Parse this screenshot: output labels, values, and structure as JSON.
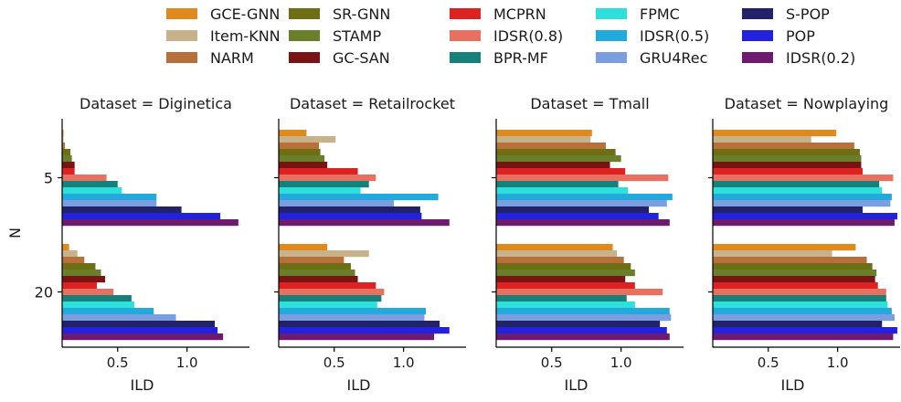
{
  "chart_data": {
    "type": "bar",
    "orientation": "horizontal",
    "grid": false,
    "legend_position": "top",
    "ylabel": "N",
    "xlabel": "ILD",
    "categories": [
      "5",
      "20"
    ],
    "xticks": [
      0.5,
      1.0
    ],
    "xtick_labels": [
      "0.5",
      "1.0"
    ],
    "xlim": [
      0.1,
      1.45
    ],
    "series": [
      {
        "name": "GCE-GNN",
        "color": "#e08a1e"
      },
      {
        "name": "Item-KNN",
        "color": "#c8b28c"
      },
      {
        "name": "NARM",
        "color": "#b8703a"
      },
      {
        "name": "SR-GNN",
        "color": "#6e6e14"
      },
      {
        "name": "STAMP",
        "color": "#6a7f2a"
      },
      {
        "name": "GC-SAN",
        "color": "#7a1414"
      },
      {
        "name": "MCPRN",
        "color": "#dd2222"
      },
      {
        "name": "IDSR(0.8)",
        "color": "#e87060"
      },
      {
        "name": "BPR-MF",
        "color": "#16807a"
      },
      {
        "name": "FPMC",
        "color": "#2ee0dc"
      },
      {
        "name": "IDSR(0.5)",
        "color": "#22aadd"
      },
      {
        "name": "GRU4Rec",
        "color": "#7a9ee0"
      },
      {
        "name": "S-POP",
        "color": "#22226a"
      },
      {
        "name": "POP",
        "color": "#2222dd"
      },
      {
        "name": "IDSR(0.2)",
        "color": "#6e1a6e"
      }
    ],
    "panels": [
      {
        "title": "Dataset = Diginetica",
        "values": {
          "5": [
            0.11,
            0.11,
            0.12,
            0.16,
            0.17,
            0.19,
            0.19,
            0.42,
            0.5,
            0.53,
            0.78,
            0.78,
            0.96,
            1.24,
            1.37
          ],
          "20": [
            0.15,
            0.21,
            0.26,
            0.34,
            0.38,
            0.41,
            0.35,
            0.47,
            0.6,
            0.62,
            0.76,
            0.92,
            1.2,
            1.22,
            1.26
          ]
        }
      },
      {
        "title": "Dataset = Retailrocket",
        "values": {
          "5": [
            0.3,
            0.51,
            0.39,
            0.4,
            0.43,
            0.45,
            0.67,
            0.8,
            0.75,
            0.69,
            1.25,
            0.93,
            1.12,
            1.13,
            1.33
          ],
          "20": [
            0.45,
            0.75,
            0.57,
            0.62,
            0.65,
            0.67,
            0.8,
            0.86,
            0.84,
            0.81,
            1.16,
            1.15,
            1.26,
            1.33,
            1.22
          ]
        }
      },
      {
        "title": "Dataset = Tmall",
        "values": {
          "5": [
            0.79,
            0.78,
            0.89,
            0.96,
            1.0,
            0.92,
            1.03,
            1.34,
            0.98,
            1.05,
            1.37,
            1.33,
            1.2,
            1.27,
            1.35
          ],
          "20": [
            0.94,
            0.97,
            1.02,
            1.07,
            1.1,
            1.03,
            1.1,
            1.3,
            1.04,
            1.1,
            1.35,
            1.36,
            1.28,
            1.33,
            1.35
          ]
        }
      },
      {
        "title": "Dataset = Nowplaying",
        "values": {
          "5": [
            0.99,
            0.81,
            1.12,
            1.16,
            1.17,
            1.17,
            1.18,
            1.4,
            1.3,
            1.32,
            1.39,
            1.38,
            1.18,
            1.43,
            1.41
          ],
          "20": [
            1.13,
            0.96,
            1.21,
            1.25,
            1.28,
            1.27,
            1.29,
            1.35,
            1.35,
            1.36,
            1.39,
            1.41,
            1.32,
            1.43,
            1.4
          ]
        }
      }
    ]
  }
}
